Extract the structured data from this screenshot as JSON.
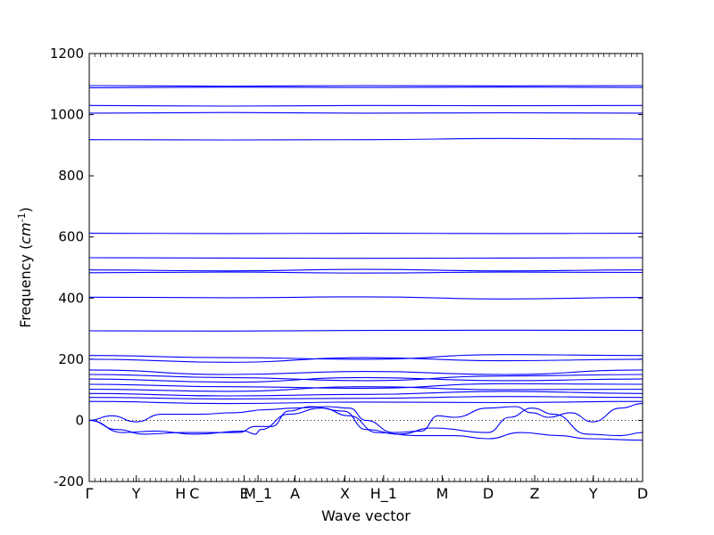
{
  "chart_data": {
    "type": "line",
    "title": "",
    "xlabel": "Wave vector",
    "ylabel": "Frequency ($cm^{-1}$)",
    "ylim": [
      -200,
      1200
    ],
    "yticks": [
      -200,
      0,
      200,
      400,
      600,
      800,
      1000,
      1200
    ],
    "xlim": [
      0,
      1
    ],
    "xticks": [
      {
        "label": "Γ",
        "pos": 0.0
      },
      {
        "label": "Y",
        "pos": 0.085
      },
      {
        "label": "H",
        "pos": 0.165
      },
      {
        "label": "C",
        "pos": 0.19
      },
      {
        "label": "E",
        "pos": 0.28
      },
      {
        "label": "M_1",
        "pos": 0.305
      },
      {
        "label": "A",
        "pos": 0.372
      },
      {
        "label": "X",
        "pos": 0.462
      },
      {
        "label": "H_1",
        "pos": 0.532
      },
      {
        "label": "M",
        "pos": 0.638
      },
      {
        "label": "D",
        "pos": 0.721
      },
      {
        "label": "Z",
        "pos": 0.805
      },
      {
        "label": "Y",
        "pos": 0.911
      },
      {
        "label": "D",
        "pos": 1.0
      }
    ],
    "grid": false,
    "line_color": "#0000ff",
    "zero_line": {
      "y": 0,
      "style": "dotted"
    },
    "series": [
      {
        "x": [
          0,
          0.25,
          0.5,
          0.75,
          1
        ],
        "y": [
          1095,
          1093,
          1095,
          1094,
          1095
        ]
      },
      {
        "x": [
          0,
          0.25,
          0.5,
          0.75,
          1
        ],
        "y": [
          1088,
          1090,
          1089,
          1090,
          1089
        ]
      },
      {
        "x": [
          0,
          0.25,
          0.5,
          0.75,
          1
        ],
        "y": [
          1030,
          1028,
          1030,
          1029,
          1030
        ]
      },
      {
        "x": [
          0,
          0.25,
          0.5,
          0.75,
          1
        ],
        "y": [
          1005,
          1007,
          1005,
          1006,
          1005
        ]
      },
      {
        "x": [
          0,
          0.25,
          0.5,
          0.75,
          1
        ],
        "y": [
          918,
          917,
          918,
          922,
          920
        ]
      },
      {
        "x": [
          0,
          0.25,
          0.5,
          0.75,
          1
        ],
        "y": [
          612,
          611,
          612,
          611,
          612
        ]
      },
      {
        "x": [
          0,
          0.25,
          0.5,
          0.75,
          1
        ],
        "y": [
          532,
          531,
          530,
          531,
          532
        ]
      },
      {
        "x": [
          0,
          0.25,
          0.5,
          0.75,
          1
        ],
        "y": [
          492,
          489,
          494,
          489,
          492
        ]
      },
      {
        "x": [
          0,
          0.25,
          0.5,
          0.75,
          1
        ],
        "y": [
          483,
          485,
          482,
          485,
          484
        ]
      },
      {
        "x": [
          0,
          0.25,
          0.5,
          0.75,
          1
        ],
        "y": [
          403,
          401,
          404,
          397,
          402
        ]
      },
      {
        "x": [
          0,
          0.25,
          0.5,
          0.75,
          1
        ],
        "y": [
          293,
          292,
          294,
          295,
          294
        ]
      },
      {
        "x": [
          0,
          0.25,
          0.5,
          0.75,
          1
        ],
        "y": [
          212,
          205,
          200,
          215,
          212
        ]
      },
      {
        "x": [
          0,
          0.25,
          0.5,
          0.75,
          1
        ],
        "y": [
          200,
          190,
          205,
          195,
          200
        ]
      },
      {
        "x": [
          0,
          0.25,
          0.5,
          0.75,
          1
        ],
        "y": [
          165,
          150,
          160,
          150,
          165
        ]
      },
      {
        "x": [
          0,
          0.25,
          0.5,
          0.75,
          1
        ],
        "y": [
          150,
          140,
          130,
          145,
          150
        ]
      },
      {
        "x": [
          0,
          0.25,
          0.5,
          0.75,
          1
        ],
        "y": [
          135,
          125,
          140,
          130,
          135
        ]
      },
      {
        "x": [
          0,
          0.25,
          0.5,
          0.75,
          1
        ],
        "y": [
          118,
          110,
          105,
          120,
          118
        ]
      },
      {
        "x": [
          0,
          0.25,
          0.5,
          0.75,
          1
        ],
        "y": [
          102,
          95,
          110,
          100,
          102
        ]
      },
      {
        "x": [
          0,
          0.25,
          0.5,
          0.75,
          1
        ],
        "y": [
          88,
          80,
          85,
          95,
          88
        ]
      },
      {
        "x": [
          0,
          0.25,
          0.5,
          0.75,
          1
        ],
        "y": [
          75,
          70,
          72,
          78,
          75
        ]
      },
      {
        "x": [
          0,
          0.25,
          0.5,
          0.75,
          1
        ],
        "y": [
          62,
          55,
          60,
          58,
          62
        ]
      },
      {
        "x": [
          0,
          0.04,
          0.085,
          0.13,
          0.2,
          0.26,
          0.32,
          0.37,
          0.43,
          0.47,
          0.5,
          0.55,
          0.6,
          0.63,
          0.66,
          0.72,
          0.77,
          0.8,
          0.83,
          0.87,
          0.91,
          0.96,
          1
        ],
        "y": [
          0,
          15,
          -5,
          20,
          20,
          25,
          35,
          40,
          45,
          40,
          0,
          -40,
          -35,
          15,
          10,
          40,
          45,
          25,
          10,
          25,
          -5,
          40,
          55
        ]
      },
      {
        "x": [
          0,
          0.05,
          0.1,
          0.17,
          0.27,
          0.3,
          0.33,
          0.36,
          0.4,
          0.46,
          0.5,
          0.56,
          0.62,
          0.72,
          0.76,
          0.8,
          0.84,
          0.9,
          0.96,
          1
        ],
        "y": [
          0,
          -30,
          -45,
          -40,
          -40,
          -20,
          -20,
          30,
          45,
          30,
          -30,
          -45,
          -25,
          -40,
          10,
          40,
          20,
          -45,
          -50,
          -40
        ]
      },
      {
        "x": [
          0,
          0.06,
          0.12,
          0.19,
          0.28,
          0.3,
          0.31,
          0.36,
          0.42,
          0.47,
          0.52,
          0.59,
          0.66,
          0.72,
          0.78,
          0.85,
          0.9,
          1
        ],
        "y": [
          0,
          -40,
          -35,
          -45,
          -35,
          -45,
          -30,
          20,
          40,
          15,
          -40,
          -50,
          -50,
          -60,
          -40,
          -50,
          -60,
          -65
        ]
      }
    ]
  }
}
